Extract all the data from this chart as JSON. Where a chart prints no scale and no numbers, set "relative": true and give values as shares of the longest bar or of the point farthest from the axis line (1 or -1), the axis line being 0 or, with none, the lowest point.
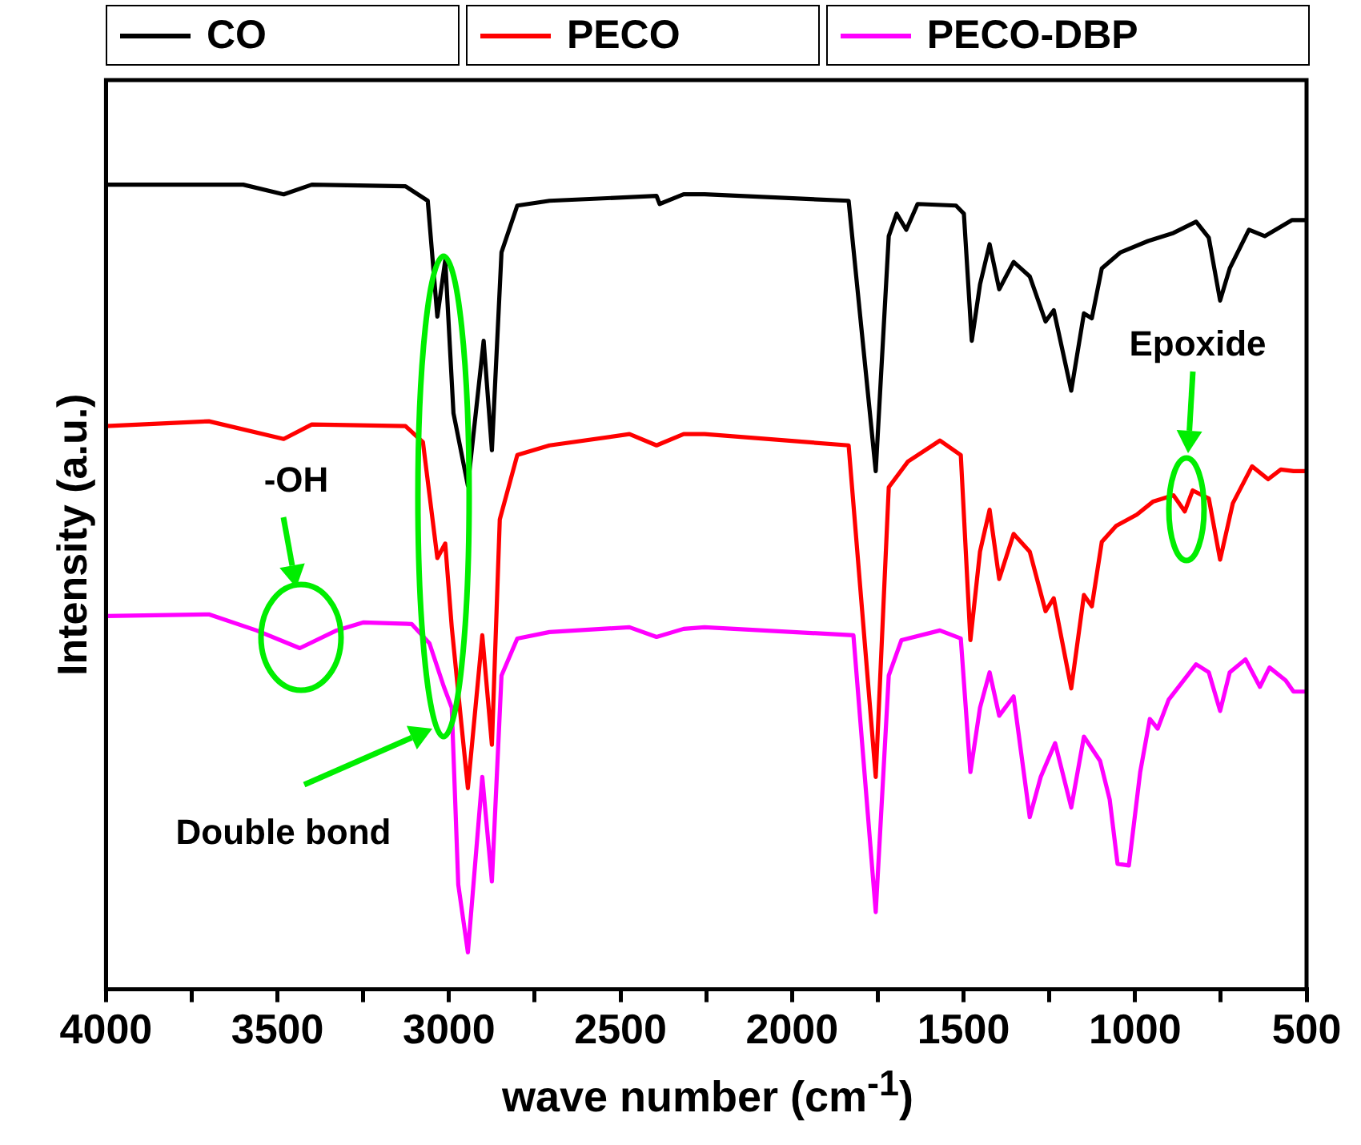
{
  "chart_data": {
    "type": "line",
    "relative": true,
    "xlabel": "wave number (cm$^{-1}$)",
    "ylabel": "Intensity (a.u.)",
    "xlim": [
      4000,
      500
    ],
    "xticks": [
      4000,
      {
        "value": 3750,
        "label": null
      },
      3500,
      {
        "value": 3250,
        "label": null
      },
      3000,
      {
        "value": 2750,
        "label": null
      },
      2500,
      {
        "value": 2250,
        "label": null
      },
      2000,
      {
        "value": 1750,
        "label": null
      },
      1500,
      {
        "value": 1250,
        "label": null
      },
      1000,
      {
        "value": 750,
        "label": null
      },
      500
    ],
    "grid": false,
    "legend": "top",
    "marker": "none",
    "line_style": "solid",
    "series": [
      {
        "name": "CO",
        "color": "#000000",
        "x": [
          4000,
          3600,
          3482,
          3400,
          3127,
          3062,
          3034,
          3011,
          2987,
          2945,
          2899,
          2875,
          2847,
          2801,
          2707,
          2395,
          2386,
          2316,
          2255,
          1835,
          1756,
          1718,
          1695,
          1667,
          1634,
          1522,
          1499,
          1476,
          1452,
          1424,
          1396,
          1354,
          1307,
          1261,
          1237,
          1186,
          1149,
          1126,
          1097,
          1042,
          962,
          888,
          822,
          785,
          752,
          724,
          668,
          622,
          542,
          500
        ],
        "values": [
          1.0,
          1.0,
          0.988,
          1.0,
          0.998,
          0.98,
          0.836,
          0.906,
          0.716,
          0.626,
          0.806,
          0.67,
          0.916,
          0.974,
          0.98,
          0.986,
          0.976,
          0.988,
          0.988,
          0.98,
          0.644,
          0.936,
          0.964,
          0.944,
          0.976,
          0.974,
          0.964,
          0.806,
          0.876,
          0.926,
          0.87,
          0.904,
          0.886,
          0.83,
          0.844,
          0.744,
          0.84,
          0.834,
          0.896,
          0.916,
          0.93,
          0.94,
          0.954,
          0.934,
          0.856,
          0.896,
          0.944,
          0.936,
          0.956,
          0.956
        ]
      },
      {
        "name": "PECO",
        "color": "#ff0000",
        "x": [
          4000,
          3700,
          3482,
          3400,
          3127,
          3076,
          3034,
          3011,
          2992,
          2964,
          2945,
          2903,
          2875,
          2852,
          2801,
          2707,
          2474,
          2395,
          2316,
          2255,
          1835,
          1756,
          1718,
          1662,
          1569,
          1508,
          1480,
          1452,
          1424,
          1396,
          1354,
          1307,
          1261,
          1237,
          1186,
          1149,
          1126,
          1097,
          1055,
          995,
          948,
          888,
          855,
          832,
          785,
          752,
          715,
          659,
          612,
          575,
          538,
          500
        ],
        "values": [
          0.7,
          0.706,
          0.684,
          0.702,
          0.7,
          0.68,
          0.536,
          0.554,
          0.45,
          0.33,
          0.25,
          0.44,
          0.304,
          0.584,
          0.664,
          0.676,
          0.69,
          0.676,
          0.69,
          0.69,
          0.676,
          0.264,
          0.624,
          0.656,
          0.682,
          0.664,
          0.434,
          0.544,
          0.596,
          0.51,
          0.566,
          0.544,
          0.47,
          0.486,
          0.374,
          0.49,
          0.476,
          0.556,
          0.576,
          0.59,
          0.606,
          0.614,
          0.594,
          0.62,
          0.61,
          0.534,
          0.604,
          0.65,
          0.634,
          0.646,
          0.644,
          0.644
        ]
      },
      {
        "name": "PECO-DBP",
        "color": "#ff00ff",
        "x": [
          4000,
          3700,
          3561,
          3435,
          3328,
          3249,
          3109,
          3057,
          3015,
          2992,
          2973,
          2945,
          2903,
          2875,
          2847,
          2801,
          2707,
          2474,
          2395,
          2316,
          2255,
          1821,
          1756,
          1718,
          1681,
          1569,
          1508,
          1480,
          1452,
          1424,
          1396,
          1354,
          1307,
          1275,
          1233,
          1186,
          1149,
          1102,
          1074,
          1051,
          1018,
          985,
          957,
          934,
          902,
          822,
          785,
          752,
          724,
          678,
          636,
          608,
          561,
          538,
          500
        ],
        "values": [
          0.464,
          0.466,
          0.446,
          0.424,
          0.446,
          0.456,
          0.454,
          0.43,
          0.376,
          0.35,
          0.13,
          0.046,
          0.264,
          0.134,
          0.39,
          0.436,
          0.444,
          0.45,
          0.438,
          0.448,
          0.45,
          0.44,
          0.096,
          0.39,
          0.434,
          0.446,
          0.436,
          0.27,
          0.35,
          0.394,
          0.34,
          0.364,
          0.214,
          0.264,
          0.306,
          0.226,
          0.314,
          0.284,
          0.236,
          0.156,
          0.154,
          0.27,
          0.336,
          0.324,
          0.36,
          0.404,
          0.394,
          0.346,
          0.394,
          0.41,
          0.376,
          0.4,
          0.384,
          0.37,
          0.37
        ]
      }
    ],
    "annotations": [
      "-OH",
      "Double bond",
      "Epoxide"
    ]
  }
}
